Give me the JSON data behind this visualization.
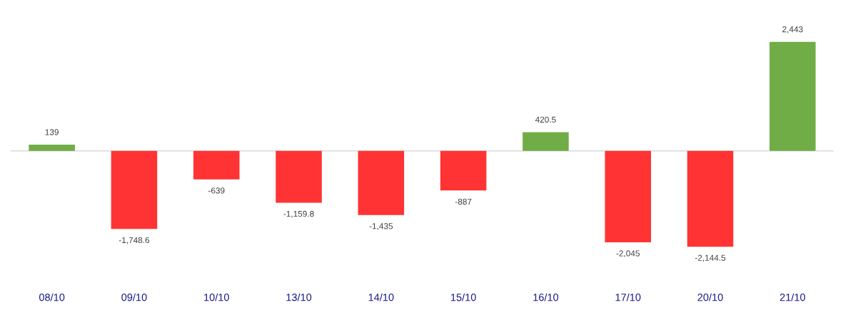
{
  "chart_data": {
    "type": "bar",
    "categories": [
      "08/10",
      "09/10",
      "10/10",
      "13/10",
      "14/10",
      "15/10",
      "16/10",
      "17/10",
      "20/10",
      "21/10"
    ],
    "values": [
      139,
      -1748.6,
      -639,
      -1159.8,
      -1435,
      -887,
      420.5,
      -2045,
      -2144.5,
      2443
    ],
    "value_labels": [
      "139",
      "-1,748.6",
      "-639",
      "-1,159.8",
      "-1,435",
      "-887",
      "420.5",
      "-2,045",
      "-2,144.5",
      "2,443"
    ],
    "colors": [
      "#70ad47",
      "#ff3333",
      "#ff3333",
      "#ff3333",
      "#ff3333",
      "#ff3333",
      "#70ad47",
      "#ff3333",
      "#ff3333",
      "#70ad47"
    ],
    "ref_lines": [
      {
        "axis": "y",
        "value": 0,
        "color": "#d9d9d9"
      }
    ],
    "tick_labels": "x",
    "grid": false
  }
}
